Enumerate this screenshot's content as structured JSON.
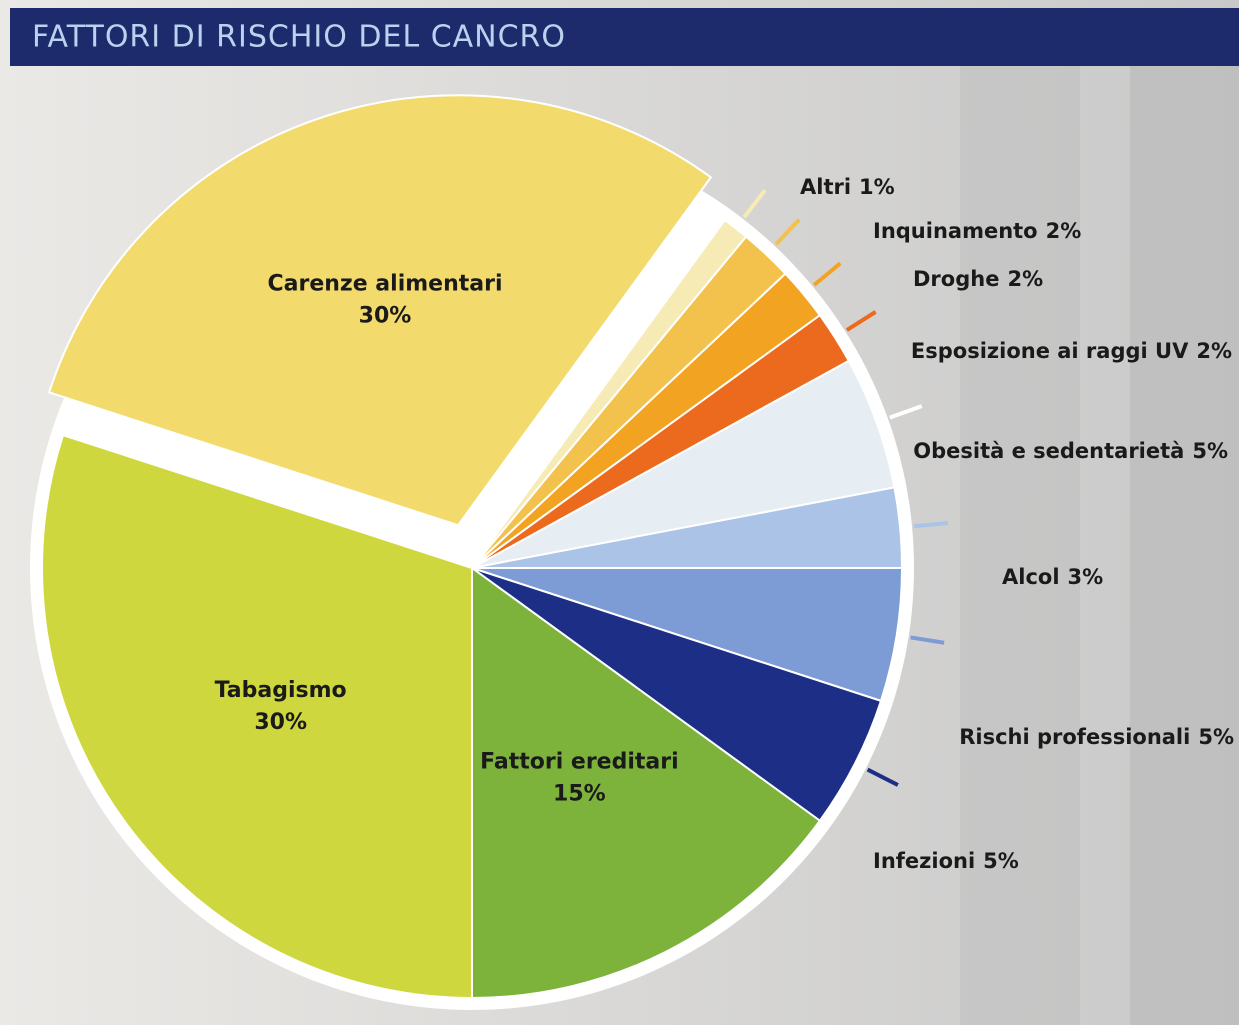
{
  "chart_data": {
    "type": "pie",
    "title": "FATTORI DI RISCHIO DEL CANCRO",
    "categories": [
      "Carenze alimentari",
      "Altri",
      "Inquinamento",
      "Droghe",
      "Esposizione ai raggi UV",
      "Obesità e sedentarietà",
      "Alcol",
      "Rischi professionali",
      "Infezioni",
      "Fattori ereditari",
      "Tabagismo"
    ],
    "values": [
      30,
      1,
      2,
      2,
      2,
      5,
      3,
      5,
      5,
      15,
      30
    ],
    "value_labels": [
      "30%",
      "1%",
      "2%",
      "2%",
      "2%",
      "5%",
      "3%",
      "5%",
      "5%",
      "15%",
      "30%"
    ],
    "colors": [
      "#f2da6c",
      "#f6ebb4",
      "#f3c24c",
      "#f2a322",
      "#ec6a1e",
      "#e6eef3",
      "#aac3e6",
      "#7d9cd6",
      "#1c2e86",
      "#7db33b",
      "#cfd73f"
    ],
    "exploded": [
      true,
      false,
      false,
      false,
      false,
      false,
      false,
      false,
      false,
      false,
      false
    ]
  }
}
